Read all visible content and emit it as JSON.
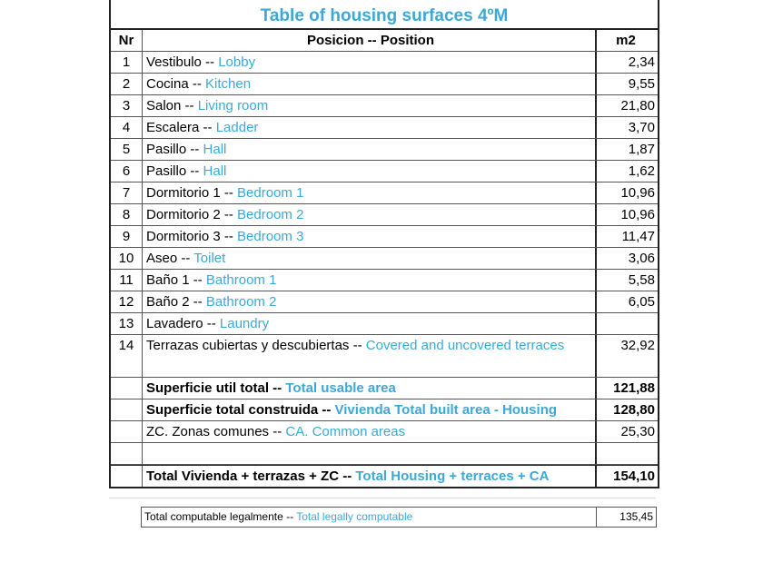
{
  "colors": {
    "blue": "#3aa9d6",
    "border": "#222222"
  },
  "title": "Table of housing surfaces 4ºM",
  "headers": {
    "nr": "Nr",
    "position": "Posicion -- Position",
    "m2": "m2"
  },
  "rows": [
    {
      "nr": "1",
      "es": "Vestibulo --",
      "en": "Lobby",
      "m2": "2,34"
    },
    {
      "nr": "2",
      "es": "Cocina --",
      "en": "Kitchen",
      "m2": "9,55"
    },
    {
      "nr": "3",
      "es": "Salon --",
      "en": "Living room",
      "m2": "21,80"
    },
    {
      "nr": "4",
      "es": "Escalera --",
      "en": "Ladder",
      "m2": "3,70"
    },
    {
      "nr": "5",
      "es": "Pasillo --",
      "en": "Hall",
      "m2": "1,87"
    },
    {
      "nr": "6",
      "es": "Pasillo --",
      "en": "Hall",
      "m2": "1,62"
    },
    {
      "nr": "7",
      "es": "Dormitorio 1 --",
      "en": "Bedroom 1",
      "m2": "10,96"
    },
    {
      "nr": "8",
      "es": "Dormitorio 2 --",
      "en": "Bedroom 2",
      "m2": "10,96"
    },
    {
      "nr": "9",
      "es": "Dormitorio 3 --",
      "en": "Bedroom 3",
      "m2": "11,47"
    },
    {
      "nr": "10",
      "es": "Aseo --",
      "en": "Toilet",
      "m2": "3,06"
    },
    {
      "nr": "11",
      "es": "Baño 1 --",
      "en": "Bathroom 1",
      "m2": "5,58"
    },
    {
      "nr": "12",
      "es": "Baño 2 --",
      "en": "Bathroom 2",
      "m2": "6,05"
    },
    {
      "nr": "13",
      "es": "Lavadero --",
      "en": "Laundry",
      "m2": ""
    },
    {
      "nr": "14",
      "es": "Terrazas cubiertas y descubiertas --",
      "en": "Covered and uncovered terraces",
      "m2": "32,92"
    }
  ],
  "summary": {
    "usable": {
      "es": "Superficie util total --",
      "en": "Total usable area",
      "m2": "121,88"
    },
    "built": {
      "es": "Superficie total construida --",
      "en": "Vivienda Total built area - Housing",
      "m2": "128,80"
    },
    "common": {
      "es": "ZC. Zonas comunes --",
      "en": "CA. Common areas",
      "m2": "25,30"
    },
    "total": {
      "es": "Total Vivienda + terrazas + ZC --",
      "en": "Total Housing + terraces + CA",
      "m2": "154,10"
    }
  },
  "legal": {
    "es": "Total computable legalmente --",
    "en": "Total legally computable",
    "m2": "135,45"
  }
}
